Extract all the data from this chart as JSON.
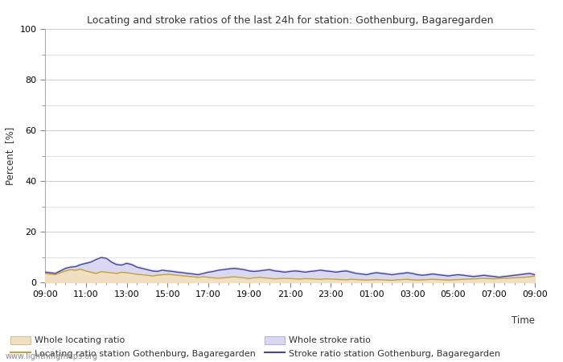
{
  "title": "Locating and stroke ratios of the last 24h for station: Gothenburg, Bagaregarden",
  "xlabel": "Time",
  "ylabel": "Percent  [%]",
  "watermark": "www.lightningmaps.org",
  "ylim": [
    0,
    100
  ],
  "yticks": [
    0,
    20,
    40,
    60,
    80,
    100
  ],
  "yticks_minor": [
    10,
    30,
    50,
    70,
    90
  ],
  "x_labels": [
    "09:00",
    "11:00",
    "13:00",
    "15:00",
    "17:00",
    "19:00",
    "21:00",
    "23:00",
    "01:00",
    "03:00",
    "05:00",
    "07:00",
    "09:00"
  ],
  "background_color": "#ffffff",
  "plot_bg_color": "#ffffff",
  "grid_color": "#cccccc",
  "whole_locating_fill_color": "#f0dfc0",
  "whole_stroke_fill_color": "#d8d8f0",
  "locating_line_color": "#c8a030",
  "stroke_line_color": "#4444aa",
  "n_points": 97,
  "whole_locating_ratio": [
    3.5,
    3.2,
    3.0,
    3.8,
    4.5,
    5.0,
    4.8,
    5.2,
    4.5,
    4.0,
    3.5,
    4.2,
    4.0,
    3.8,
    3.5,
    4.0,
    3.8,
    3.5,
    3.2,
    3.0,
    2.8,
    2.5,
    2.8,
    3.0,
    3.2,
    3.0,
    2.8,
    2.6,
    2.4,
    2.2,
    2.0,
    2.2,
    2.0,
    1.8,
    1.6,
    1.8,
    2.0,
    2.2,
    2.0,
    1.8,
    1.5,
    1.8,
    2.0,
    1.8,
    1.6,
    1.4,
    1.5,
    1.6,
    1.5,
    1.4,
    1.3,
    1.5,
    1.4,
    1.3,
    1.2,
    1.4,
    1.3,
    1.2,
    1.1,
    1.0,
    1.2,
    1.1,
    1.0,
    0.9,
    1.0,
    1.1,
    1.0,
    0.9,
    0.8,
    1.0,
    1.1,
    1.2,
    1.0,
    0.9,
    1.0,
    1.1,
    1.2,
    1.1,
    1.0,
    0.9,
    1.0,
    1.1,
    1.2,
    1.3,
    1.4,
    1.5,
    1.6,
    1.5,
    1.4,
    1.5,
    1.6,
    1.7,
    1.8,
    1.9,
    2.0,
    2.2,
    2.5
  ],
  "whole_stroke_ratio": [
    4.5,
    4.2,
    4.0,
    5.0,
    6.0,
    6.5,
    6.8,
    7.5,
    8.0,
    8.5,
    9.5,
    10.2,
    9.8,
    8.5,
    7.5,
    7.2,
    8.0,
    7.5,
    6.5,
    6.0,
    5.5,
    5.0,
    4.8,
    5.2,
    5.0,
    4.8,
    4.5,
    4.2,
    4.0,
    3.8,
    3.5,
    4.0,
    4.5,
    4.8,
    5.2,
    5.5,
    5.8,
    6.0,
    5.8,
    5.5,
    5.0,
    4.8,
    5.0,
    5.2,
    5.5,
    5.0,
    4.8,
    4.5,
    4.8,
    5.0,
    4.8,
    4.5,
    4.8,
    5.0,
    5.2,
    5.0,
    4.8,
    4.5,
    4.8,
    5.0,
    4.5,
    4.0,
    3.8,
    3.5,
    4.0,
    4.2,
    4.0,
    3.8,
    3.5,
    3.8,
    4.0,
    4.2,
    4.0,
    3.5,
    3.2,
    3.5,
    3.8,
    3.5,
    3.2,
    3.0,
    3.2,
    3.5,
    3.2,
    3.0,
    2.8,
    3.0,
    3.2,
    3.0,
    2.8,
    2.5,
    2.8,
    3.0,
    3.2,
    3.5,
    3.8,
    4.0,
    3.5
  ],
  "locating_station_ratio": [
    3.5,
    3.2,
    3.0,
    3.8,
    4.5,
    5.0,
    4.8,
    5.2,
    4.5,
    4.0,
    3.5,
    4.2,
    4.0,
    3.8,
    3.5,
    4.0,
    3.8,
    3.5,
    3.2,
    3.0,
    2.8,
    2.5,
    2.8,
    3.0,
    3.2,
    3.0,
    2.8,
    2.6,
    2.4,
    2.2,
    2.0,
    2.2,
    2.0,
    1.8,
    1.6,
    1.8,
    2.0,
    2.2,
    2.0,
    1.8,
    1.5,
    1.8,
    2.0,
    1.8,
    1.6,
    1.4,
    1.5,
    1.6,
    1.5,
    1.4,
    1.3,
    1.5,
    1.4,
    1.3,
    1.2,
    1.4,
    1.3,
    1.2,
    1.1,
    1.0,
    1.2,
    1.1,
    1.0,
    0.9,
    1.0,
    1.1,
    1.0,
    0.9,
    0.8,
    1.0,
    1.1,
    1.2,
    1.0,
    0.9,
    1.0,
    1.1,
    1.2,
    1.1,
    1.0,
    0.9,
    1.0,
    1.1,
    1.2,
    1.3,
    1.4,
    1.5,
    1.6,
    1.5,
    1.4,
    1.5,
    1.6,
    1.7,
    1.8,
    1.9,
    2.0,
    2.2,
    2.5
  ],
  "stroke_station_ratio": [
    4.0,
    3.8,
    3.5,
    4.5,
    5.5,
    6.0,
    6.2,
    7.0,
    7.5,
    8.0,
    9.0,
    9.8,
    9.5,
    8.0,
    7.0,
    6.8,
    7.5,
    7.0,
    6.0,
    5.5,
    5.0,
    4.5,
    4.3,
    4.8,
    4.5,
    4.3,
    4.0,
    3.8,
    3.5,
    3.3,
    3.0,
    3.5,
    4.0,
    4.3,
    4.8,
    5.0,
    5.3,
    5.5,
    5.3,
    5.0,
    4.5,
    4.3,
    4.5,
    4.8,
    5.0,
    4.5,
    4.3,
    4.0,
    4.3,
    4.5,
    4.3,
    4.0,
    4.3,
    4.5,
    4.8,
    4.5,
    4.3,
    4.0,
    4.3,
    4.5,
    4.0,
    3.5,
    3.3,
    3.0,
    3.5,
    3.8,
    3.5,
    3.3,
    3.0,
    3.3,
    3.5,
    3.8,
    3.5,
    3.0,
    2.8,
    3.0,
    3.3,
    3.0,
    2.8,
    2.5,
    2.8,
    3.0,
    2.8,
    2.5,
    2.3,
    2.5,
    2.8,
    2.5,
    2.3,
    2.0,
    2.3,
    2.5,
    2.8,
    3.0,
    3.3,
    3.5,
    3.0
  ]
}
